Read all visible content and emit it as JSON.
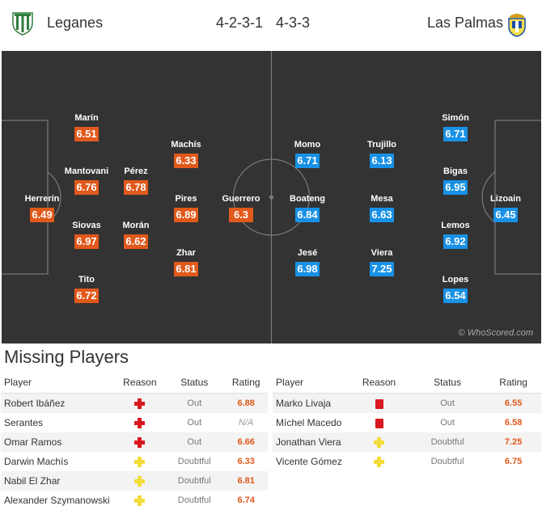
{
  "header": {
    "home_team": "Leganes",
    "away_team": "Las Palmas",
    "home_formation": "4-2-3-1",
    "away_formation": "4-3-3"
  },
  "pitch": {
    "home_players": [
      {
        "name": "Herrerín",
        "rating": "6.49"
      },
      {
        "name": "Marín",
        "rating": "6.51"
      },
      {
        "name": "Mantovani",
        "rating": "6.76"
      },
      {
        "name": "Siovas",
        "rating": "6.97"
      },
      {
        "name": "Tito",
        "rating": "6.72"
      },
      {
        "name": "Pérez",
        "rating": "6.78"
      },
      {
        "name": "Morán",
        "rating": "6.62"
      },
      {
        "name": "Machís",
        "rating": "6.33"
      },
      {
        "name": "Pires",
        "rating": "6.89"
      },
      {
        "name": "Zhar",
        "rating": "6.81"
      },
      {
        "name": "Guerrero",
        "rating": "6.3"
      }
    ],
    "away_players": [
      {
        "name": "Lizoain",
        "rating": "6.45"
      },
      {
        "name": "Simón",
        "rating": "6.71"
      },
      {
        "name": "Bigas",
        "rating": "6.95"
      },
      {
        "name": "Lemos",
        "rating": "6.92"
      },
      {
        "name": "Lopes",
        "rating": "6.54"
      },
      {
        "name": "Trujillo",
        "rating": "6.13"
      },
      {
        "name": "Mesa",
        "rating": "6.63"
      },
      {
        "name": "Viera",
        "rating": "7.25"
      },
      {
        "name": "Momo",
        "rating": "6.71"
      },
      {
        "name": "Boateng",
        "rating": "6.84"
      },
      {
        "name": "Jesé",
        "rating": "6.98"
      }
    ],
    "watermark": "© WhoScored.com"
  },
  "missing": {
    "title": "Missing Players",
    "columns": {
      "player": "Player",
      "reason": "Reason",
      "status": "Status",
      "rating": "Rating"
    },
    "home": [
      {
        "player": "Robert Ibáñez",
        "reason": "injury-icon",
        "status": "Out",
        "rating": "6.88"
      },
      {
        "player": "Serantes",
        "reason": "injury-icon",
        "status": "Out",
        "rating": "N/A"
      },
      {
        "player": "Omar Ramos",
        "reason": "injury-icon",
        "status": "Out",
        "rating": "6.66"
      },
      {
        "player": "Darwin Machís",
        "reason": "doubt-icon",
        "status": "Doubtful",
        "rating": "6.33"
      },
      {
        "player": "Nabil El Zhar",
        "reason": "doubt-icon",
        "status": "Doubtful",
        "rating": "6.81"
      },
      {
        "player": "Alexander Szymanowski",
        "reason": "doubt-icon",
        "status": "Doubtful",
        "rating": "6.74"
      }
    ],
    "away": [
      {
        "player": "Marko Livaja",
        "reason": "redcard-icon",
        "status": "Out",
        "rating": "6.55"
      },
      {
        "player": "Míchel Macedo",
        "reason": "redcard-icon",
        "status": "Out",
        "rating": "6.58"
      },
      {
        "player": "Jonathan Viera",
        "reason": "doubt-icon",
        "status": "Doubtful",
        "rating": "7.25"
      },
      {
        "player": "Vicente Gómez",
        "reason": "doubt-icon",
        "status": "Doubtful",
        "rating": "6.75"
      }
    ]
  },
  "colors": {
    "home_accent": "#e1591b",
    "away_accent": "#1891e6",
    "pitch": "#333333"
  }
}
